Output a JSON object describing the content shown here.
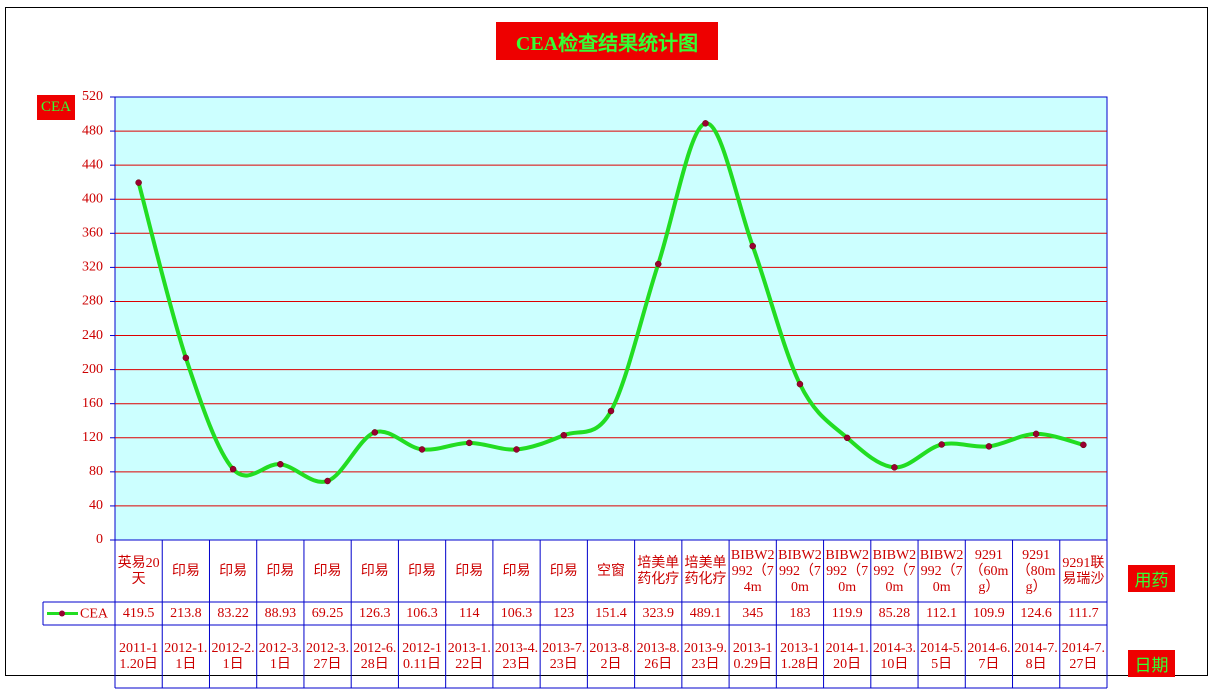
{
  "chart_data": {
    "type": "line",
    "title": "CEA检查结果统计图",
    "y_label": "CEA",
    "x_label": "用药",
    "date_label": "日期",
    "categories": [
      "英易20天",
      "印易",
      "印易",
      "印易",
      "印易",
      "印易",
      "印易",
      "印易",
      "印易",
      "印易",
      "空窗",
      "培美单药化疗",
      "培美单药化疗",
      "BIBW2992（74m",
      "BIBW2992（70m",
      "BIBW2992（70m",
      "BIBW2992（70m",
      "BIBW2992（70m",
      "9291（60mg）",
      "9291（80mg）",
      "9291联易瑞沙"
    ],
    "dates": [
      "2011-11.20日",
      "2012-1.1日",
      "2012-2.1日",
      "2012-3.1日",
      "2012-3.27日",
      "2012-6.28日",
      "2012-10.11日",
      "2013-1.22日",
      "2013-4.23日",
      "2013-7.23日",
      "2013-8.2日",
      "2013-8.26日",
      "2013-9.23日",
      "2013-10.29日",
      "2013-11.28日",
      "2014-1.20日",
      "2014-3.10日",
      "2014-5.5日",
      "2014-6.7日",
      "2014-7.8日",
      "2014-7.27日"
    ],
    "series": [
      {
        "name": "CEA",
        "color": "#22dd22",
        "marker_color": "#990033",
        "values": [
          419.5,
          213.8,
          83.22,
          88.93,
          69.25,
          126.3,
          106.3,
          114,
          106.3,
          123,
          151.4,
          323.9,
          489.1,
          345,
          183,
          119.9,
          85.28,
          112.1,
          109.9,
          124.6,
          111.7
        ]
      }
    ],
    "ylim": [
      0,
      520
    ],
    "yticks": [
      0,
      40,
      80,
      120,
      160,
      200,
      240,
      280,
      320,
      360,
      400,
      440,
      480,
      520
    ],
    "grid": true
  }
}
